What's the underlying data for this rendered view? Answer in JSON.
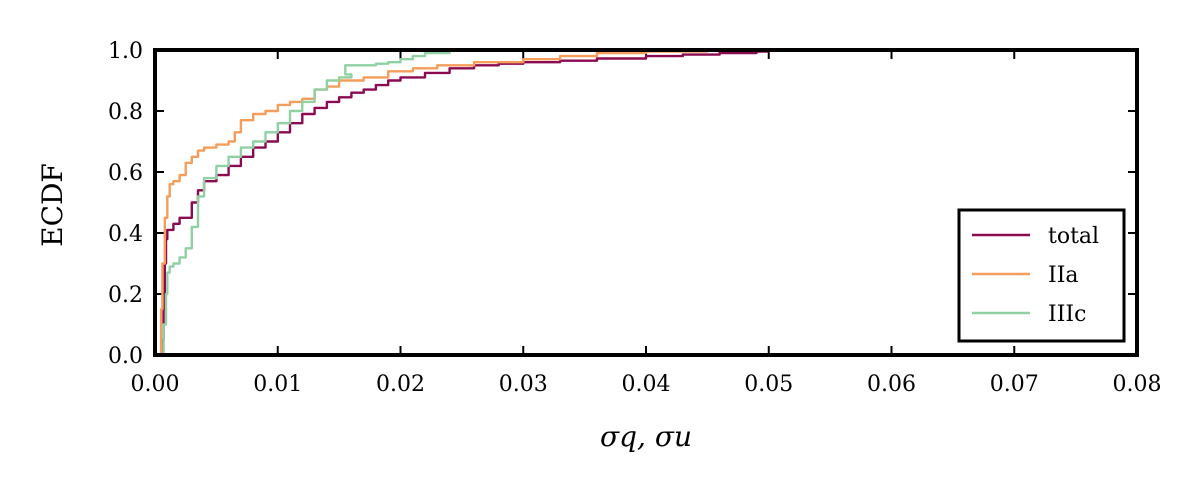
{
  "chart_data": {
    "type": "line",
    "title": "",
    "xlabel": {
      "text": "σq, σu"
    },
    "ylabel": "ECDF",
    "xlim": [
      0,
      0.08
    ],
    "ylim": [
      0,
      1.0
    ],
    "xticks": [
      "0.00",
      "0.01",
      "0.02",
      "0.03",
      "0.04",
      "0.05",
      "0.06",
      "0.07",
      "0.08"
    ],
    "yticks": [
      "0.0",
      "0.2",
      "0.4",
      "0.6",
      "0.8",
      "1.0"
    ],
    "grid": false,
    "legend_position": "lower-right",
    "series": [
      {
        "name": "total",
        "color": "#8b0a50",
        "points": [
          [
            0.0004,
            0.0
          ],
          [
            0.0006,
            0.05
          ],
          [
            0.0007,
            0.15
          ],
          [
            0.0008,
            0.3
          ],
          [
            0.0009,
            0.38
          ],
          [
            0.001,
            0.41
          ],
          [
            0.0015,
            0.43
          ],
          [
            0.002,
            0.45
          ],
          [
            0.003,
            0.5
          ],
          [
            0.0035,
            0.54
          ],
          [
            0.004,
            0.57
          ],
          [
            0.005,
            0.59
          ],
          [
            0.006,
            0.62
          ],
          [
            0.007,
            0.65
          ],
          [
            0.008,
            0.68
          ],
          [
            0.009,
            0.7
          ],
          [
            0.01,
            0.73
          ],
          [
            0.011,
            0.76
          ],
          [
            0.012,
            0.79
          ],
          [
            0.013,
            0.81
          ],
          [
            0.014,
            0.83
          ],
          [
            0.015,
            0.845
          ],
          [
            0.016,
            0.86
          ],
          [
            0.017,
            0.87
          ],
          [
            0.018,
            0.885
          ],
          [
            0.019,
            0.9
          ],
          [
            0.02,
            0.91
          ],
          [
            0.022,
            0.925
          ],
          [
            0.024,
            0.94
          ],
          [
            0.026,
            0.95
          ],
          [
            0.028,
            0.955
          ],
          [
            0.03,
            0.96
          ],
          [
            0.033,
            0.965
          ],
          [
            0.036,
            0.972
          ],
          [
            0.04,
            0.98
          ],
          [
            0.043,
            0.985
          ],
          [
            0.046,
            0.99
          ],
          [
            0.049,
            0.995
          ],
          [
            0.05,
            1.0
          ]
        ]
      },
      {
        "name": "IIa",
        "color": "#f59d5b",
        "points": [
          [
            0.0003,
            0.0
          ],
          [
            0.0005,
            0.15
          ],
          [
            0.0006,
            0.3
          ],
          [
            0.0008,
            0.45
          ],
          [
            0.001,
            0.52
          ],
          [
            0.0012,
            0.56
          ],
          [
            0.0015,
            0.57
          ],
          [
            0.002,
            0.59
          ],
          [
            0.0025,
            0.63
          ],
          [
            0.003,
            0.65
          ],
          [
            0.0035,
            0.67
          ],
          [
            0.004,
            0.68
          ],
          [
            0.005,
            0.69
          ],
          [
            0.006,
            0.7
          ],
          [
            0.0065,
            0.73
          ],
          [
            0.007,
            0.77
          ],
          [
            0.008,
            0.79
          ],
          [
            0.009,
            0.8
          ],
          [
            0.01,
            0.82
          ],
          [
            0.011,
            0.83
          ],
          [
            0.012,
            0.84
          ],
          [
            0.013,
            0.87
          ],
          [
            0.014,
            0.88
          ],
          [
            0.015,
            0.9
          ],
          [
            0.017,
            0.91
          ],
          [
            0.019,
            0.93
          ],
          [
            0.021,
            0.94
          ],
          [
            0.023,
            0.95
          ],
          [
            0.026,
            0.96
          ],
          [
            0.03,
            0.97
          ],
          [
            0.033,
            0.98
          ],
          [
            0.036,
            0.99
          ],
          [
            0.04,
            0.995
          ],
          [
            0.045,
            1.0
          ]
        ]
      },
      {
        "name": "IIIc",
        "color": "#8fd1a3",
        "points": [
          [
            0.0005,
            0.0
          ],
          [
            0.0007,
            0.1
          ],
          [
            0.0009,
            0.2
          ],
          [
            0.001,
            0.27
          ],
          [
            0.0012,
            0.29
          ],
          [
            0.0015,
            0.3
          ],
          [
            0.002,
            0.32
          ],
          [
            0.0025,
            0.35
          ],
          [
            0.003,
            0.42
          ],
          [
            0.0035,
            0.52
          ],
          [
            0.004,
            0.58
          ],
          [
            0.005,
            0.62
          ],
          [
            0.006,
            0.65
          ],
          [
            0.007,
            0.68
          ],
          [
            0.008,
            0.7
          ],
          [
            0.009,
            0.73
          ],
          [
            0.01,
            0.76
          ],
          [
            0.011,
            0.8
          ],
          [
            0.012,
            0.83
          ],
          [
            0.013,
            0.87
          ],
          [
            0.014,
            0.9
          ],
          [
            0.015,
            0.91
          ],
          [
            0.016,
            0.92
          ],
          [
            0.0155,
            0.95
          ],
          [
            0.018,
            0.955
          ],
          [
            0.019,
            0.96
          ],
          [
            0.02,
            0.97
          ],
          [
            0.021,
            0.98
          ],
          [
            0.022,
            0.99
          ],
          [
            0.024,
            1.0
          ]
        ]
      }
    ]
  }
}
